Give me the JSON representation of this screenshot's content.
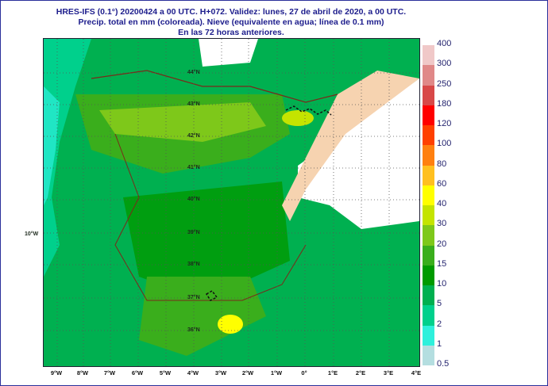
{
  "title": {
    "line1": "HRES-IFS (0.1°) 20200424 a 00 UTC.  H+072. Validez: lunes, 27 de abril de 2020,  a  00 UTC.",
    "line2": "Precip. total en mm (coloreada). Nieve (equivalente en agua; línea de 0.1 mm)",
    "line3": "En las 72 horas anteriores."
  },
  "map": {
    "latitude_labels": [
      "44°N",
      "43°N",
      "42°N",
      "41°N",
      "40°N",
      "39°N",
      "38°N",
      "37°N",
      "36°N"
    ],
    "left_label": "10°W",
    "longitude_labels": [
      "9°W",
      "8°W",
      "7°W",
      "6°W",
      "5°W",
      "4°W",
      "3°W",
      "2°W",
      "1°W",
      "0°",
      "1°E",
      "2°E",
      "3°E",
      "4°E"
    ]
  },
  "legend": {
    "unit": "mm",
    "levels": [
      {
        "label": "0.5",
        "color": "#b4dee0"
      },
      {
        "label": "1",
        "color": "#2ef0dc"
      },
      {
        "label": "2",
        "color": "#00d08c"
      },
      {
        "label": "5",
        "color": "#00b050"
      },
      {
        "label": "10",
        "color": "#009a00"
      },
      {
        "label": "15",
        "color": "#3aae1c"
      },
      {
        "label": "20",
        "color": "#7ec81a"
      },
      {
        "label": "30",
        "color": "#c4e400"
      },
      {
        "label": "40",
        "color": "#ffff00"
      },
      {
        "label": "60",
        "color": "#ffc020"
      },
      {
        "label": "80",
        "color": "#ff8010"
      },
      {
        "label": "100",
        "color": "#ff4000"
      },
      {
        "label": "120",
        "color": "#ff0000"
      },
      {
        "label": "180",
        "color": "#d84848"
      },
      {
        "label": "250",
        "color": "#e08888"
      },
      {
        "label": "300",
        "color": "#f0c8c8"
      },
      {
        "label": "400",
        "color": ""
      }
    ]
  }
}
